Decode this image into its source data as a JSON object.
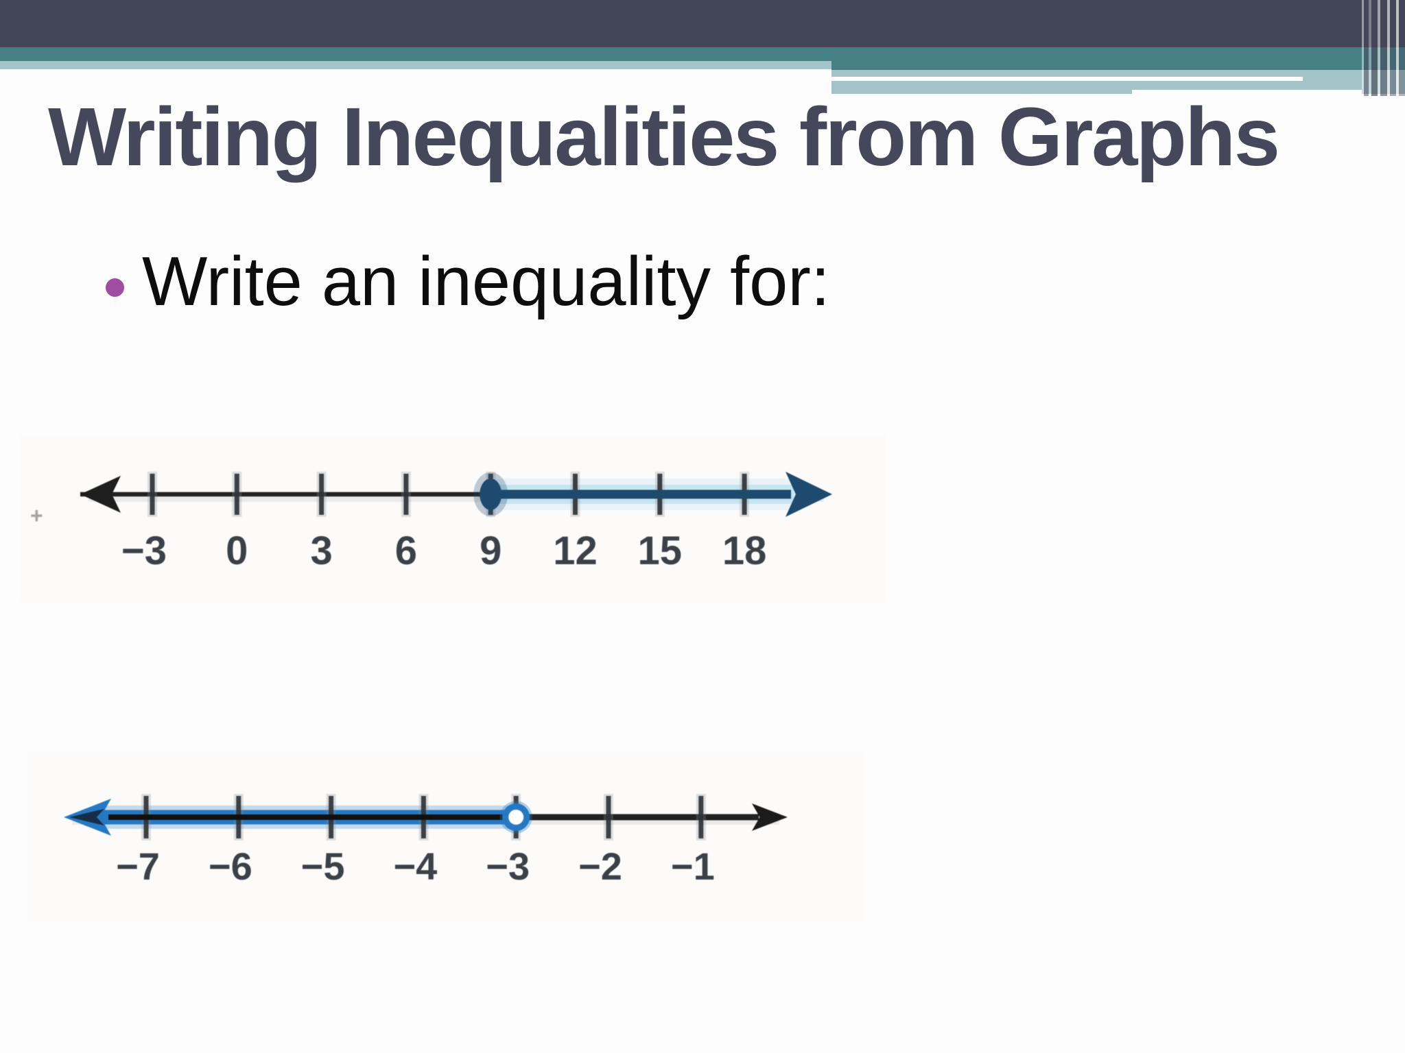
{
  "slide": {
    "title": "Writing Inequalities from Graphs",
    "bullet": {
      "marker_shape": "circle",
      "text": "Write an inequality for:"
    },
    "stray_mark": "+"
  },
  "theme": {
    "band_dark": "#434656",
    "band_teal": "#478084",
    "band_light": "#a5c4ca",
    "title_color": "#45485a",
    "bullet_dot_color": "#a14ca3",
    "body_text_color": "#0d0d0d",
    "numberline_navy": "#1d4a6e",
    "numberline_navy_halo": "#bfe2f2",
    "numberline_blue": "#2579c2",
    "numberline_ink": "#222222",
    "numberline_label_color": "#3c4149"
  },
  "chart_data": [
    {
      "type": "number_line",
      "tick_labels": [
        "−3",
        "0",
        "3",
        "6",
        "9",
        "12",
        "15",
        "18"
      ],
      "tick_values": [
        -3,
        0,
        3,
        6,
        9,
        12,
        15,
        18
      ],
      "endpoint_value": 9,
      "endpoint_style": "closed",
      "ray_direction": "right",
      "arrows": "both"
    },
    {
      "type": "number_line",
      "tick_labels": [
        "−7",
        "−6",
        "−5",
        "−4",
        "−3",
        "−2",
        "−1"
      ],
      "tick_values": [
        -7,
        -6,
        -5,
        -4,
        -3,
        -2,
        -1
      ],
      "endpoint_value": -3,
      "endpoint_style": "open",
      "ray_direction": "left",
      "arrows": "both"
    }
  ]
}
